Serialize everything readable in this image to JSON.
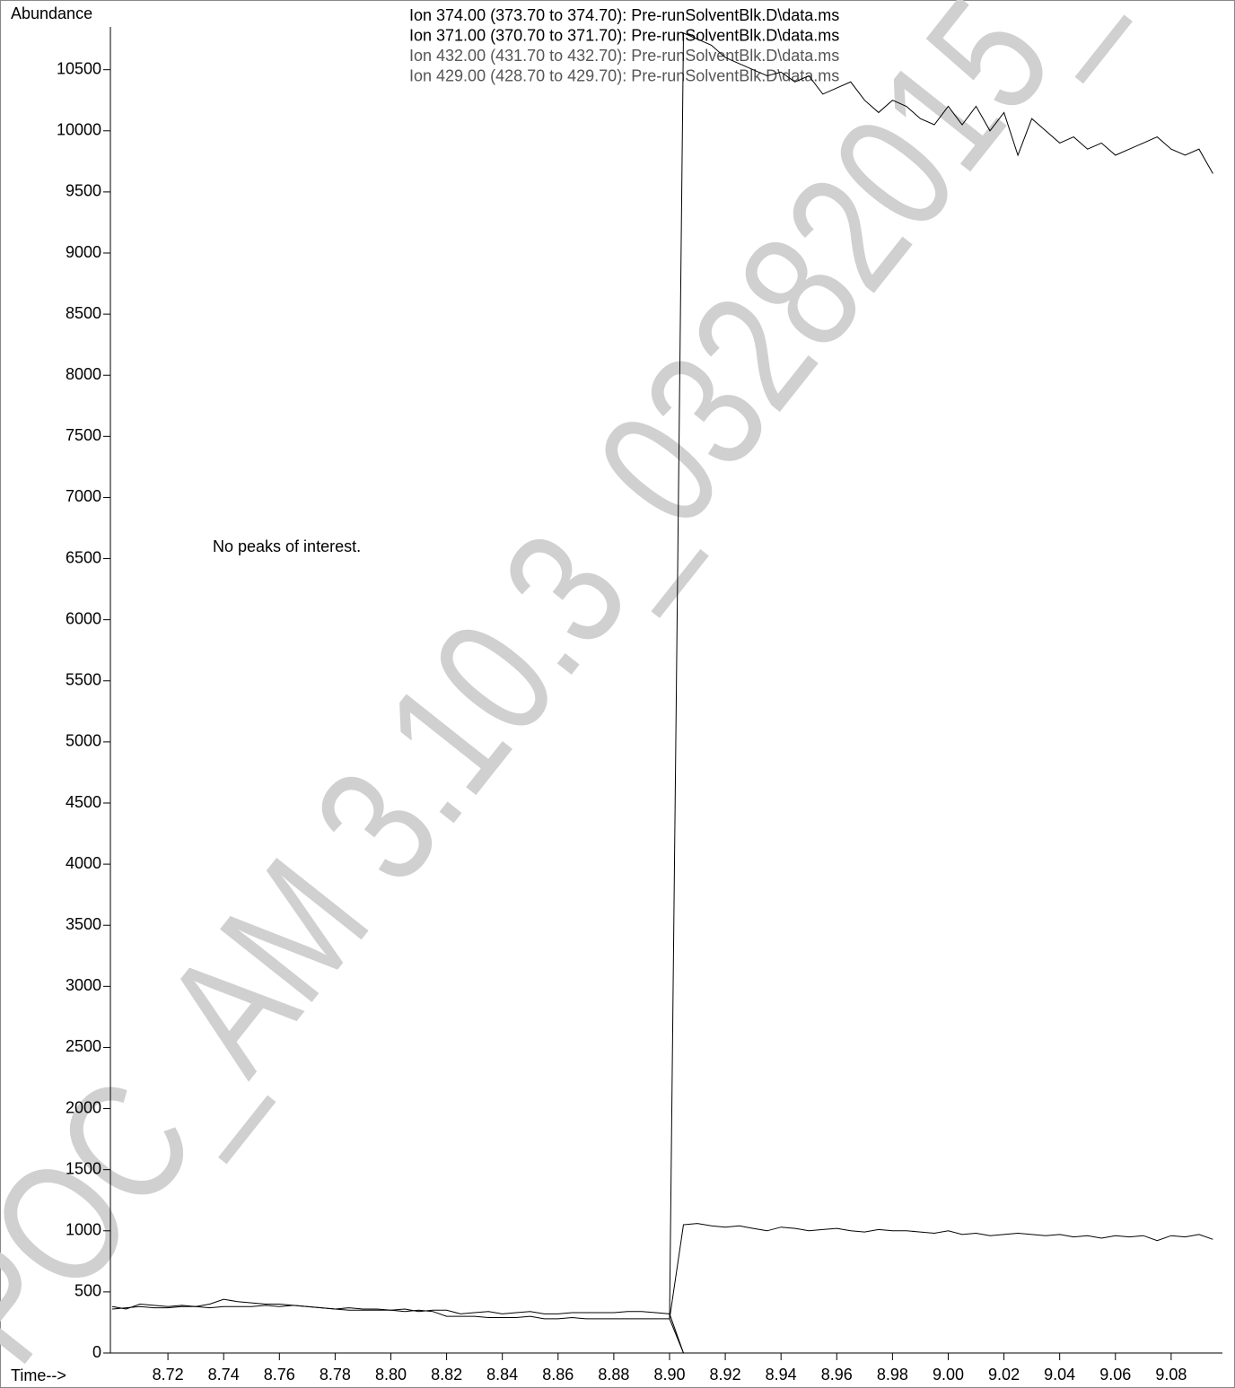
{
  "chart_data": {
    "type": "line",
    "y_label": "Abundance",
    "x_label": "Time-->",
    "annotation": "No peaks of interest.",
    "watermark": "POC_AM 3.10.3_03282015_",
    "x": [
      8.7,
      8.705,
      8.71,
      8.715,
      8.72,
      8.725,
      8.73,
      8.735,
      8.74,
      8.745,
      8.75,
      8.755,
      8.76,
      8.765,
      8.77,
      8.775,
      8.78,
      8.785,
      8.79,
      8.795,
      8.8,
      8.805,
      8.81,
      8.815,
      8.82,
      8.825,
      8.83,
      8.835,
      8.84,
      8.845,
      8.85,
      8.855,
      8.86,
      8.865,
      8.87,
      8.875,
      8.88,
      8.885,
      8.89,
      8.895,
      8.9,
      8.905,
      8.91,
      8.915,
      8.92,
      8.925,
      8.93,
      8.935,
      8.94,
      8.945,
      8.95,
      8.955,
      8.96,
      8.965,
      8.97,
      8.975,
      8.98,
      8.985,
      8.99,
      8.995,
      9.0,
      9.005,
      9.01,
      9.015,
      9.02,
      9.025,
      9.03,
      9.035,
      9.04,
      9.045,
      9.05,
      9.055,
      9.06,
      9.065,
      9.07,
      9.075,
      9.08,
      9.085,
      9.09,
      9.095
    ],
    "series": [
      {
        "name": "Ion 374.00 (373.70 to 374.70): Pre-runSolventBlk.D\\data.ms",
        "color": "#000000",
        "values": [
          380,
          360,
          400,
          390,
          380,
          390,
          380,
          400,
          440,
          420,
          410,
          400,
          400,
          390,
          380,
          370,
          360,
          370,
          360,
          360,
          350,
          360,
          340,
          350,
          350,
          320,
          330,
          340,
          320,
          330,
          340,
          320,
          320,
          330,
          330,
          330,
          330,
          340,
          340,
          330,
          320,
          0,
          null,
          null,
          null,
          null,
          null,
          null,
          null,
          null,
          null,
          null,
          null,
          null,
          null,
          null,
          null,
          null,
          null,
          null,
          null,
          null,
          null,
          null,
          null,
          null,
          null,
          null,
          null,
          null,
          null,
          null,
          null,
          null,
          null,
          null,
          null,
          null,
          null,
          null
        ]
      },
      {
        "name": "Ion 371.00 (370.70 to 371.70): Pre-runSolventBlk.D\\data.ms",
        "color": "#000000",
        "values": [
          360,
          370,
          380,
          370,
          370,
          380,
          380,
          370,
          380,
          380,
          380,
          390,
          380,
          390,
          380,
          370,
          360,
          350,
          350,
          350,
          350,
          340,
          350,
          340,
          300,
          300,
          300,
          290,
          290,
          290,
          300,
          280,
          280,
          290,
          280,
          280,
          280,
          280,
          280,
          280,
          280,
          0,
          null,
          null,
          null,
          null,
          null,
          null,
          null,
          null,
          null,
          null,
          null,
          null,
          null,
          null,
          null,
          null,
          null,
          null,
          null,
          null,
          null,
          null,
          null,
          null,
          null,
          null,
          null,
          null,
          null,
          null,
          null,
          null,
          null,
          null,
          null,
          null,
          null,
          null
        ]
      },
      {
        "name": "Ion 432.00 (431.70 to 432.70): Pre-runSolventBlk.D\\data.ms",
        "color": "#555555",
        "values": [
          null,
          null,
          null,
          null,
          null,
          null,
          null,
          null,
          null,
          null,
          null,
          null,
          null,
          null,
          null,
          null,
          null,
          null,
          null,
          null,
          null,
          null,
          null,
          null,
          null,
          null,
          null,
          null,
          null,
          null,
          null,
          null,
          null,
          null,
          null,
          null,
          null,
          null,
          null,
          null,
          280,
          10800,
          10750,
          10700,
          10600,
          10550,
          10500,
          10450,
          10480,
          10400,
          10450,
          10300,
          10350,
          10400,
          10250,
          10150,
          10250,
          10200,
          10100,
          10050,
          10200,
          10050,
          10200,
          10000,
          10150,
          9800,
          10100,
          10000,
          9900,
          9950,
          9850,
          9900,
          9800,
          9850,
          9900,
          9950,
          9850,
          9800,
          9850,
          9650
        ]
      },
      {
        "name": "Ion 429.00 (428.70 to 429.70): Pre-runSolventBlk.D\\data.ms",
        "color": "#555555",
        "values": [
          null,
          null,
          null,
          null,
          null,
          null,
          null,
          null,
          null,
          null,
          null,
          null,
          null,
          null,
          null,
          null,
          null,
          null,
          null,
          null,
          null,
          null,
          null,
          null,
          null,
          null,
          null,
          null,
          null,
          null,
          null,
          null,
          null,
          null,
          null,
          null,
          null,
          null,
          null,
          null,
          280,
          1050,
          1060,
          1040,
          1030,
          1040,
          1020,
          1000,
          1030,
          1020,
          1000,
          1010,
          1020,
          1000,
          990,
          1010,
          1000,
          1000,
          990,
          980,
          1000,
          970,
          980,
          960,
          970,
          980,
          970,
          960,
          970,
          950,
          960,
          940,
          960,
          950,
          960,
          920,
          960,
          950,
          970,
          930
        ]
      }
    ],
    "xlim": [
      8.7,
      9.0984
    ],
    "ylim": [
      0,
      10850
    ],
    "xticks": [
      8.72,
      8.74,
      8.76,
      8.78,
      {
        "value": 8.8,
        "label": "8.80"
      },
      8.82,
      8.84,
      8.86,
      8.88,
      {
        "value": 8.9,
        "label": "8.90"
      },
      8.92,
      8.94,
      8.96,
      8.98,
      {
        "value": 9.0,
        "label": "9.00"
      },
      9.02,
      9.04,
      9.06,
      9.08
    ],
    "yticks": [
      0,
      500,
      1000,
      1500,
      2000,
      2500,
      3000,
      3500,
      4000,
      4500,
      5000,
      5500,
      6000,
      6500,
      7000,
      7500,
      8000,
      8500,
      9000,
      9500,
      10000,
      10500
    ]
  }
}
